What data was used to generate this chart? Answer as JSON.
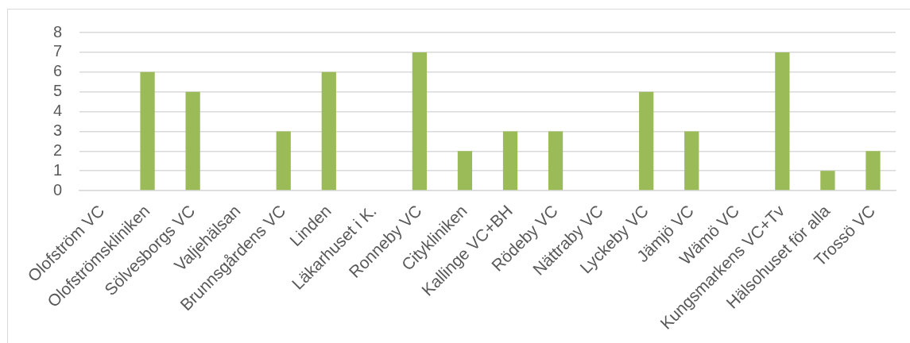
{
  "chart_data": {
    "type": "bar",
    "categories": [
      "Olofström VC",
      "Olofströmskliniken",
      "Sölvesborgs VC",
      "Valjehälsan",
      "Brunnsgårdens VC",
      "Linden",
      "Läkarhuset i K.",
      "Ronneby VC",
      "Citykliniken",
      "Kallinge VC+BH",
      "Rödeby VC",
      "Nättraby VC",
      "Lyckeby VC",
      "Jämjö VC",
      "Wämö VC",
      "Kungsmarkens VC+Tv",
      "Hälsohuset för alla",
      "Trossö VC"
    ],
    "values": [
      0,
      6,
      5,
      0,
      3,
      6,
      0,
      7,
      2,
      3,
      3,
      0,
      5,
      3,
      0,
      7,
      1,
      2
    ],
    "color": "#9bbb59",
    "ylim": [
      0,
      8
    ],
    "yticks": [
      0,
      1,
      2,
      3,
      4,
      5,
      6,
      7,
      8
    ],
    "grid": "y"
  }
}
